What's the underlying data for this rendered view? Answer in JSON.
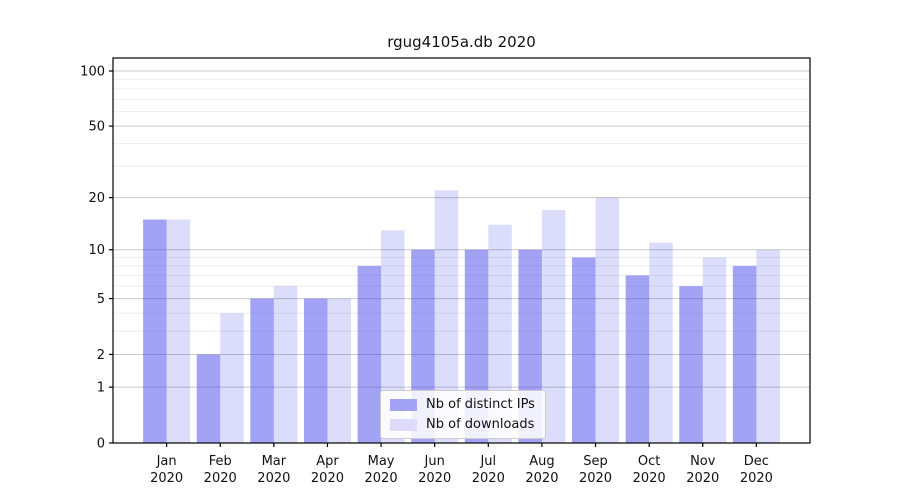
{
  "chart_data": {
    "type": "bar",
    "title": "rgug4105a.db 2020",
    "categories": [
      "Jan 2020",
      "Feb 2020",
      "Mar 2020",
      "Apr 2020",
      "May 2020",
      "Jun 2020",
      "Jul 2020",
      "Aug 2020",
      "Sep 2020",
      "Oct 2020",
      "Nov 2020",
      "Dec 2020"
    ],
    "series": [
      {
        "name": "Nb of distinct IPs",
        "swatch_color": "#a3a3f5",
        "bar_fill": "rgba(60,60,235,0.47)",
        "values": [
          15,
          2,
          5,
          5,
          8,
          10,
          10,
          10,
          9,
          7,
          6,
          8
        ]
      },
      {
        "name": "Nb of downloads",
        "swatch_color": "#dcdcfa",
        "bar_fill": "rgba(60,60,235,0.18)",
        "values": [
          15,
          4,
          6,
          5,
          13,
          22,
          14,
          17,
          20,
          11,
          9,
          10
        ]
      }
    ],
    "yscale": "log1p",
    "yticks": [
      100,
      50,
      20,
      10,
      5,
      2,
      1,
      0
    ],
    "minor_gridlines": [
      3,
      4,
      6,
      7,
      8,
      9,
      30,
      40,
      60,
      70,
      80,
      90
    ],
    "ylim": [
      0,
      117.7
    ],
    "xlabel": "",
    "ylabel": "",
    "grid": true,
    "legend_position": "lower center",
    "colors": {
      "axis": "#000000",
      "major_grid": "#c9c9c9",
      "minor_grid": "#ededed",
      "tick_text": "#111111"
    }
  }
}
